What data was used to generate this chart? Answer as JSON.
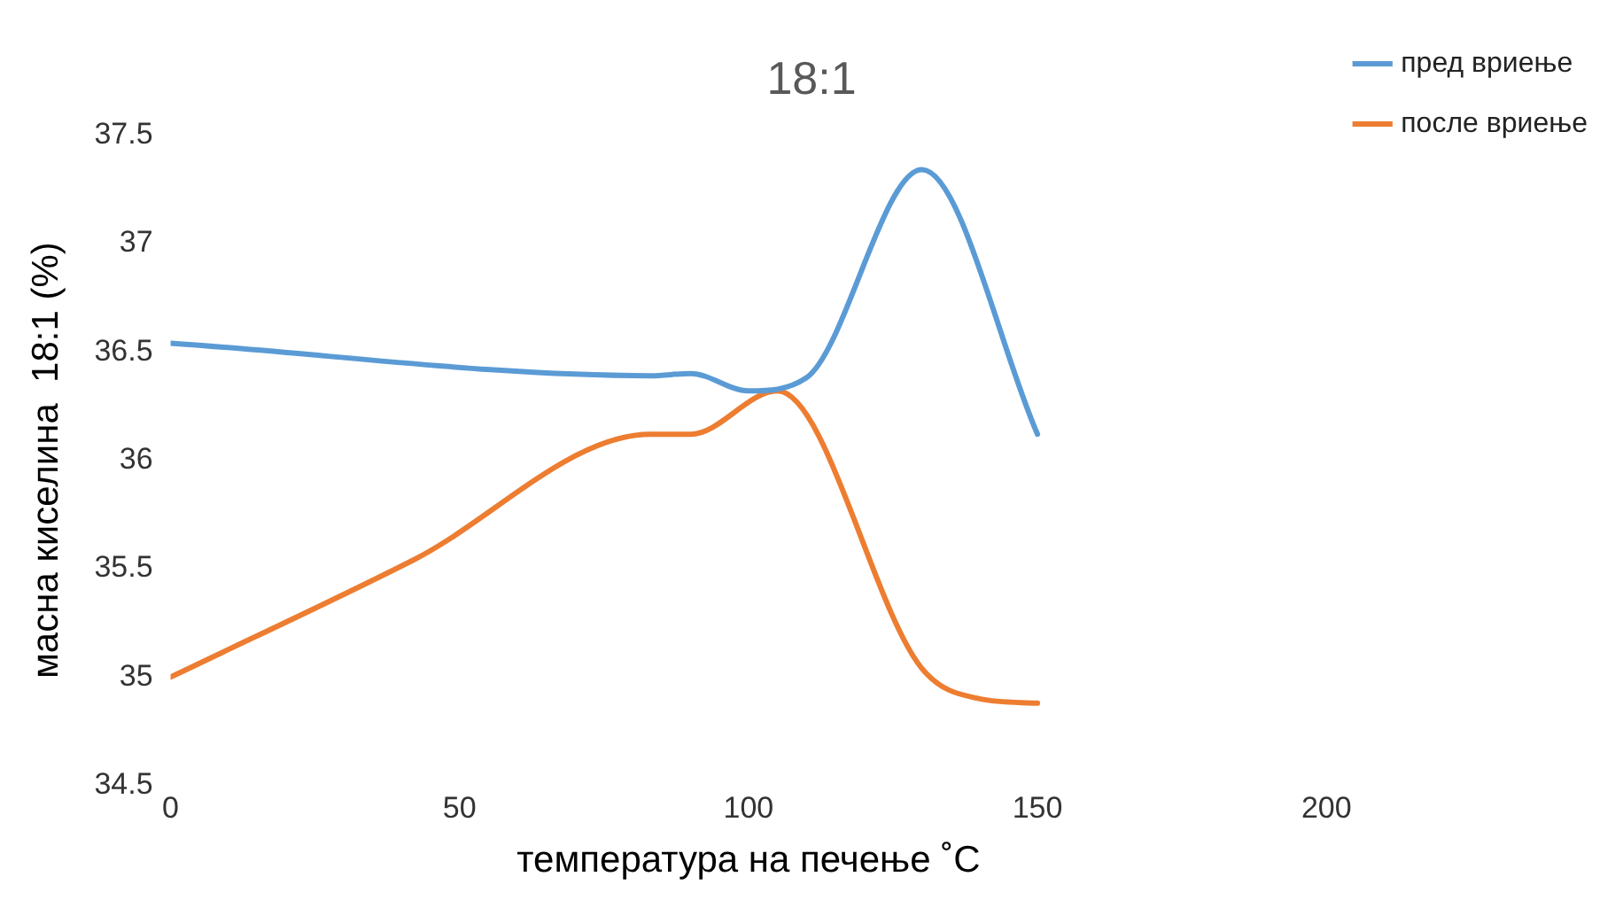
{
  "chart_data": {
    "type": "line",
    "title": "18:1",
    "xlabel": "температура на печење ˚C",
    "ylabel": "масна киселина  18:1 (%)",
    "xlim": [
      0,
      200
    ],
    "xticks": [
      0,
      50,
      100,
      150,
      200
    ],
    "ylim": [
      34.5,
      37.5
    ],
    "yticks": [
      34.5,
      35,
      35.5,
      36,
      36.5,
      37,
      37.5
    ],
    "grid": false,
    "legend": "top right",
    "marker": "none",
    "line_style": "solid",
    "series": [
      {
        "name": "пред вриење",
        "color": "#5b9bd5",
        "x": [
          0,
          83,
          90,
          100,
          110,
          130,
          150
        ],
        "values": [
          36.54,
          36.39,
          36.4,
          36.32,
          36.38,
          37.34,
          36.12
        ]
      },
      {
        "name": "после вриење",
        "color": "#ed7d31",
        "x": [
          0,
          42,
          83,
          90,
          105,
          130,
          140,
          150
        ],
        "values": [
          35.0,
          35.54,
          36.12,
          36.12,
          36.32,
          35.04,
          34.9,
          34.88
        ]
      }
    ]
  }
}
